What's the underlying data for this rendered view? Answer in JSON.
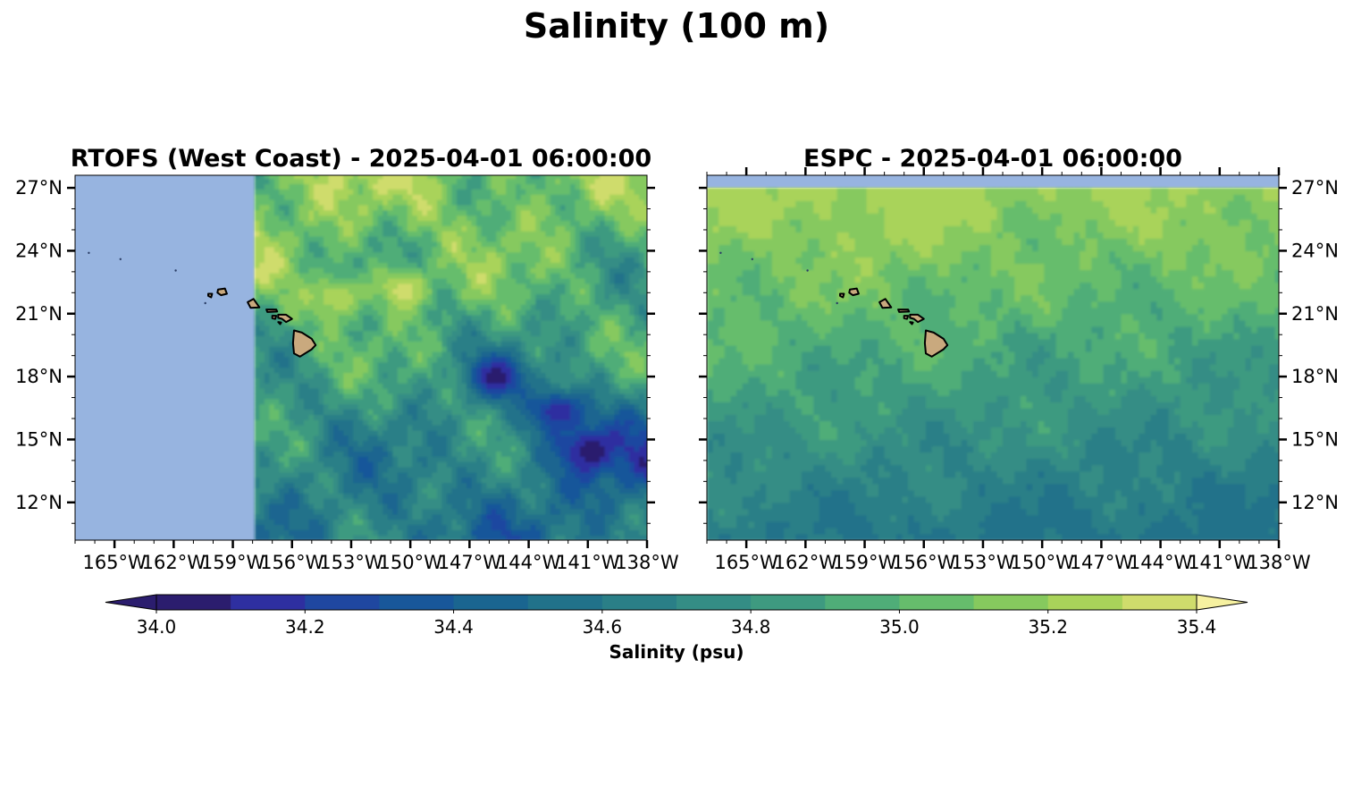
{
  "figure": {
    "title": "Salinity (100 m)"
  },
  "colorbar": {
    "label": "Salinity (psu)",
    "ticks": [
      "34.0",
      "34.2",
      "34.4",
      "34.6",
      "34.8",
      "35.0",
      "35.2",
      "35.4"
    ],
    "range": [
      33.95,
      35.45
    ],
    "levels": [
      33.95,
      34.1,
      34.2,
      34.3,
      34.4,
      34.5,
      34.6,
      34.7,
      34.8,
      34.9,
      35.0,
      35.1,
      35.2,
      35.3,
      35.45
    ],
    "colors": [
      "#2b1d6e",
      "#2e2fa0",
      "#1f47a0",
      "#18579a",
      "#1a6590",
      "#21728a",
      "#2a7f87",
      "#348d85",
      "#3e9a80",
      "#4fad78",
      "#66bd6c",
      "#86c95e",
      "#a9d35a",
      "#cfdc6c"
    ],
    "extend": "both"
  },
  "colors": {
    "land": "#c9a97e",
    "no_data": "#97b4e0",
    "coast": "#000000"
  },
  "chart_data": [
    {
      "type": "heatmap",
      "title": "RTOFS (West Coast) - 2025-04-01 06:00:00",
      "xlabel": "",
      "ylabel": "",
      "xlim": [
        -167,
        -138
      ],
      "ylim": [
        10.2,
        27.6
      ],
      "x_ticks": [
        -165,
        -162,
        -159,
        -156,
        -153,
        -150,
        -147,
        -144,
        -141,
        -138
      ],
      "x_tick_labels": [
        "165°W",
        "162°W",
        "159°W",
        "156°W",
        "153°W",
        "150°W",
        "147°W",
        "144°W",
        "141°W",
        "138°W"
      ],
      "y_ticks": [
        12,
        15,
        18,
        21,
        24,
        27
      ],
      "y_tick_labels": [
        "12°N",
        "15°N",
        "18°N",
        "21°N",
        "24°N",
        "27°N"
      ],
      "y_axis_side": "left",
      "data_domain": {
        "lon": [
          -157.9,
          -138
        ],
        "lat": [
          10.2,
          27.6
        ]
      },
      "salinity_range_psu": [
        34.0,
        35.4
      ],
      "features": [
        {
          "name": "high-salinity filament",
          "lon": -150.3,
          "lat": 22.2,
          "value": 35.4
        },
        {
          "name": "high-salinity eddy",
          "lon": -153.7,
          "lat": 21.8,
          "value": 35.35
        },
        {
          "name": "low-salinity eddy",
          "lon": -145.6,
          "lat": 18.0,
          "value": 34.0
        },
        {
          "name": "low-salinity tongue",
          "lon": -142.5,
          "lat": 16.4,
          "value": 34.1
        },
        {
          "name": "low-salinity patch",
          "lon": -141.0,
          "lat": 14.5,
          "value": 34.15
        }
      ]
    },
    {
      "type": "heatmap",
      "title": "ESPC - 2025-04-01 06:00:00",
      "xlabel": "",
      "ylabel": "",
      "xlim": [
        -167,
        -138
      ],
      "ylim": [
        10.2,
        27.6
      ],
      "x_ticks": [
        -165,
        -162,
        -159,
        -156,
        -153,
        -150,
        -147,
        -144,
        -141,
        -138
      ],
      "x_tick_labels": [
        "165°W",
        "162°W",
        "159°W",
        "156°W",
        "153°W",
        "150°W",
        "147°W",
        "144°W",
        "141°W",
        "138°W"
      ],
      "y_ticks": [
        12,
        15,
        18,
        21,
        24,
        27
      ],
      "y_tick_labels": [
        "12°N",
        "15°N",
        "18°N",
        "21°N",
        "24°N",
        "27°N"
      ],
      "y_axis_side": "right",
      "data_domain": {
        "lon": [
          -167,
          -138
        ],
        "lat": [
          10.2,
          27.0
        ]
      },
      "salinity_range_psu": [
        34.5,
        35.3
      ],
      "features": [
        {
          "name": "high-salinity band",
          "lon": -150.0,
          "lat": 24.5,
          "value": 35.2
        },
        {
          "name": "low-salinity region",
          "lon": -140.0,
          "lat": 11.5,
          "value": 34.5
        }
      ]
    }
  ]
}
